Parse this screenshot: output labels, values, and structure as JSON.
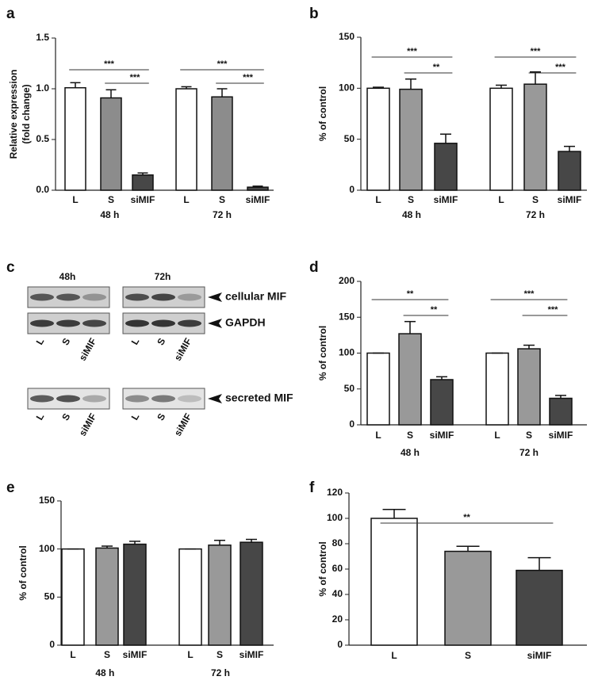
{
  "chart_data": [
    {
      "type": "bar",
      "panel": "a",
      "ylabel": [
        "Relative expression",
        "(fold change)"
      ],
      "categories": [
        "L",
        "S",
        "siMIF",
        "L",
        "S",
        "siMIF"
      ],
      "groups": [
        "48 h",
        "72 h"
      ],
      "values": [
        1.01,
        0.91,
        0.15,
        1.0,
        0.92,
        0.03
      ],
      "errors": [
        0.05,
        0.08,
        0.02,
        0.02,
        0.08,
        0.01
      ],
      "colors": [
        "#ffffff",
        "#8c8c8c",
        "#474747"
      ],
      "ylim": [
        0,
        1.5
      ],
      "yticks": [
        {
          "value": 0,
          "label": "0.0"
        },
        {
          "value": 0.5,
          "label": "0.5"
        },
        {
          "value": 1,
          "label": "1.0"
        },
        {
          "value": 1.5,
          "label": "1.5"
        }
      ],
      "significance": [
        {
          "from": 0,
          "to": 2,
          "label": "***"
        },
        {
          "from": 1,
          "to": 2,
          "label": "***"
        },
        {
          "from": 3,
          "to": 5,
          "label": "***"
        },
        {
          "from": 4,
          "to": 5,
          "label": "***"
        }
      ]
    },
    {
      "type": "bar",
      "panel": "b",
      "ylabel": [
        "% of control"
      ],
      "categories": [
        "L",
        "S",
        "siMIF",
        "L",
        "S",
        "siMIF"
      ],
      "groups": [
        "48 h",
        "72 h"
      ],
      "values": [
        100,
        99,
        46,
        100,
        104,
        38
      ],
      "errors": [
        1,
        10,
        9,
        3,
        12,
        5
      ],
      "colors": [
        "#ffffff",
        "#999999",
        "#474747"
      ],
      "ylim": [
        0,
        150
      ],
      "yticks": [
        0,
        50,
        100,
        150
      ],
      "significance": [
        {
          "from": 0,
          "to": 2,
          "label": "***"
        },
        {
          "from": 1,
          "to": 2,
          "label": "**"
        },
        {
          "from": 3,
          "to": 5,
          "label": "***"
        },
        {
          "from": 4,
          "to": 5,
          "label": "***"
        }
      ]
    },
    {
      "type": "bar",
      "panel": "d",
      "ylabel": [
        "% of control"
      ],
      "categories": [
        "L",
        "S",
        "siMIF",
        "L",
        "S",
        "siMIF"
      ],
      "groups": [
        "48 h",
        "72 h"
      ],
      "values": [
        100,
        127,
        63,
        100,
        106,
        37
      ],
      "errors": [
        0,
        17,
        4,
        0,
        5,
        4
      ],
      "colors": [
        "#ffffff",
        "#999999",
        "#474747"
      ],
      "ylim": [
        0,
        200
      ],
      "yticks": [
        0,
        50,
        100,
        150,
        200
      ],
      "significance": [
        {
          "from": 0,
          "to": 2,
          "label": "**"
        },
        {
          "from": 1,
          "to": 2,
          "label": "**"
        },
        {
          "from": 3,
          "to": 5,
          "label": "***"
        },
        {
          "from": 4,
          "to": 5,
          "label": "***"
        }
      ]
    },
    {
      "type": "bar",
      "panel": "e",
      "ylabel": [
        "% of control"
      ],
      "categories": [
        "L",
        "S",
        "siMIF",
        "L",
        "S",
        "siMIF"
      ],
      "groups": [
        "48 h",
        "72 h"
      ],
      "values": [
        100,
        101,
        105,
        100,
        104,
        107
      ],
      "errors": [
        0,
        2,
        3,
        0,
        5,
        3
      ],
      "colors": [
        "#ffffff",
        "#999999",
        "#474747"
      ],
      "ylim": [
        0,
        150
      ],
      "yticks": [
        0,
        50,
        100,
        150
      ]
    },
    {
      "type": "bar",
      "panel": "f",
      "ylabel": [
        "% of control"
      ],
      "categories": [
        "L",
        "S",
        "siMIF"
      ],
      "values": [
        100,
        74,
        59
      ],
      "errors": [
        7,
        4,
        10
      ],
      "colors": [
        "#ffffff",
        "#999999",
        "#474747"
      ],
      "ylim": [
        0,
        120
      ],
      "yticks": [
        0,
        20,
        40,
        60,
        80,
        100,
        120
      ],
      "significance": [
        {
          "from": 0,
          "to": 2,
          "label": "**"
        }
      ]
    }
  ],
  "blot": {
    "panel": "c",
    "time_points": [
      "48h",
      "72h"
    ],
    "lanes": [
      "L",
      "S",
      "siMIF"
    ],
    "bands": [
      "cellular MIF",
      "GAPDH",
      "secreted MIF"
    ]
  }
}
